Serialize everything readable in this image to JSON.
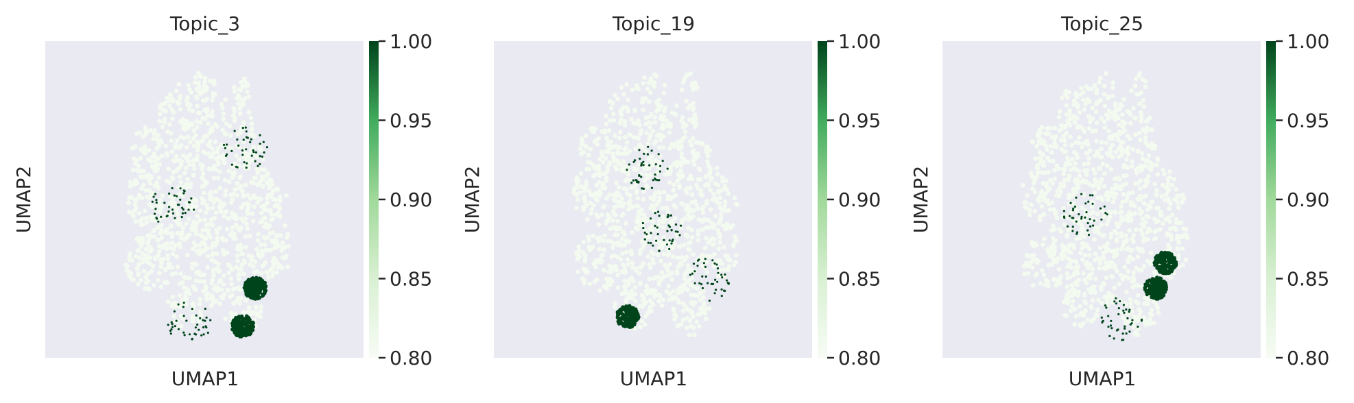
{
  "figure": {
    "panel_count": 3
  },
  "chart_data": [
    {
      "type": "scatter",
      "title": "Topic_3",
      "xlabel": "UMAP1",
      "ylabel": "UMAP2",
      "colormap": "Greens",
      "colorbar": {
        "min": 0.8,
        "max": 1.0,
        "ticks": [
          "1.00",
          "0.95",
          "0.90",
          "0.85",
          "0.80"
        ]
      },
      "background_color": "#eaeaf2",
      "base_color": "#f3faf0",
      "highlight_color": "#00441b",
      "hotspots": [
        {
          "x": 0.62,
          "y": 0.1,
          "label": "dense cluster"
        },
        {
          "x": 0.66,
          "y": 0.22,
          "label": "dense cluster"
        },
        {
          "x": 0.45,
          "y": 0.11,
          "label": "sparse"
        },
        {
          "x": 0.63,
          "y": 0.66,
          "label": "sparse"
        },
        {
          "x": 0.4,
          "y": 0.48,
          "label": "sparse"
        }
      ]
    },
    {
      "type": "scatter",
      "title": "Topic_19",
      "xlabel": "UMAP1",
      "ylabel": "UMAP2",
      "colormap": "Greens",
      "colorbar": {
        "min": 0.8,
        "max": 1.0,
        "ticks": [
          "1.00",
          "0.95",
          "0.90",
          "0.85",
          "0.80"
        ]
      },
      "background_color": "#eaeaf2",
      "base_color": "#f3faf0",
      "highlight_color": "#00441b",
      "hotspots": [
        {
          "x": 0.42,
          "y": 0.13,
          "label": "dense cluster"
        },
        {
          "x": 0.68,
          "y": 0.25,
          "label": "sparse"
        },
        {
          "x": 0.53,
          "y": 0.4,
          "label": "sparse"
        },
        {
          "x": 0.48,
          "y": 0.6,
          "label": "sparse"
        }
      ]
    },
    {
      "type": "scatter",
      "title": "Topic_25",
      "xlabel": "UMAP1",
      "ylabel": "UMAP2",
      "colormap": "Greens",
      "colorbar": {
        "min": 0.8,
        "max": 1.0,
        "ticks": [
          "1.00",
          "0.95",
          "0.90",
          "0.85",
          "0.80"
        ]
      },
      "background_color": "#eaeaf2",
      "base_color": "#f3faf0",
      "highlight_color": "#00441b",
      "hotspots": [
        {
          "x": 0.7,
          "y": 0.3,
          "label": "dense cluster"
        },
        {
          "x": 0.67,
          "y": 0.22,
          "label": "dense cluster"
        },
        {
          "x": 0.45,
          "y": 0.45,
          "label": "sparse"
        },
        {
          "x": 0.56,
          "y": 0.12,
          "label": "sparse"
        }
      ]
    }
  ]
}
